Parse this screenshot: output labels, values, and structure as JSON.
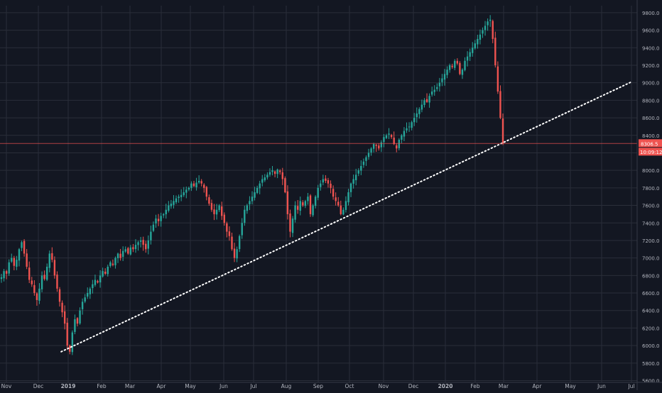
{
  "chart_data": {
    "type": "candlestick",
    "x_labels": [
      "Nov",
      "Dec",
      "2019",
      "Feb",
      "Mar",
      "Apr",
      "May",
      "Jun",
      "Jul",
      "Aug",
      "Sep",
      "Oct",
      "Nov",
      "Dec",
      "2020",
      "Feb",
      "Mar",
      "Apr",
      "May",
      "Jun",
      "Jul"
    ],
    "y_ticks": [
      "5600.0",
      "5800.0",
      "6000.0",
      "6200.0",
      "6400.0",
      "6600.0",
      "6800.0",
      "7000.0",
      "7200.0",
      "7400.0",
      "7600.0",
      "7800.0",
      "8000.0",
      "8200.0",
      "8400.0",
      "8600.0",
      "8800.0",
      "9000.0",
      "9200.0",
      "9400.0",
      "9600.0",
      "9800.0"
    ],
    "ylim": [
      5580,
      9880
    ],
    "grid": true,
    "last_price_label": "8306.5",
    "countdown_label": "10:09:12",
    "last_price": 8306.5,
    "trendline": {
      "from": {
        "date": "2018-12-24",
        "value": 5930
      },
      "to": {
        "date": "2020-07-01",
        "value": 9010
      },
      "style": "dotted"
    },
    "closes": [
      6780,
      6850,
      6820,
      6950,
      7000,
      6910,
      6980,
      7100,
      7180,
      7050,
      6900,
      6750,
      6700,
      6600,
      6520,
      6650,
      6800,
      6760,
      6900,
      7050,
      6980,
      6800,
      6650,
      6500,
      6380,
      6250,
      6000,
      5930,
      6150,
      6300,
      6250,
      6400,
      6500,
      6550,
      6600,
      6650,
      6700,
      6750,
      6720,
      6800,
      6850,
      6820,
      6900,
      6950,
      6920,
      7000,
      7050,
      7000,
      7080,
      7100,
      7050,
      7120,
      7100,
      7150,
      7180,
      7200,
      7150,
      7100,
      7200,
      7300,
      7380,
      7450,
      7420,
      7480,
      7500,
      7550,
      7600,
      7620,
      7650,
      7680,
      7700,
      7720,
      7750,
      7780,
      7800,
      7850,
      7820,
      7860,
      7880,
      7850,
      7800,
      7700,
      7620,
      7550,
      7500,
      7550,
      7600,
      7480,
      7400,
      7300,
      7250,
      7100,
      7000,
      7100,
      7250,
      7400,
      7550,
      7600,
      7650,
      7700,
      7750,
      7800,
      7850,
      7900,
      7920,
      7950,
      7980,
      8000,
      7960,
      8010,
      7980,
      7900,
      7750,
      7500,
      7300,
      7450,
      7600,
      7550,
      7650,
      7600,
      7650,
      7700,
      7500,
      7600,
      7700,
      7800,
      7850,
      7900,
      7880,
      7850,
      7800,
      7700,
      7650,
      7600,
      7500,
      7550,
      7650,
      7750,
      7850,
      7900,
      7950,
      8000,
      8050,
      8100,
      8150,
      8200,
      8250,
      8300,
      8280,
      8250,
      8320,
      8380,
      8400,
      8420,
      8380,
      8300,
      8250,
      8350,
      8400,
      8450,
      8480,
      8500,
      8550,
      8600,
      8650,
      8700,
      8750,
      8800,
      8780,
      8850,
      8900,
      8920,
      8950,
      9000,
      9050,
      9100,
      9150,
      9200,
      9180,
      9250,
      9220,
      9100,
      9150,
      9250,
      9300,
      9350,
      9400,
      9450,
      9500,
      9550,
      9600,
      9650,
      9700,
      9720,
      9500,
      9200,
      8900,
      8600,
      8306.5
    ]
  }
}
